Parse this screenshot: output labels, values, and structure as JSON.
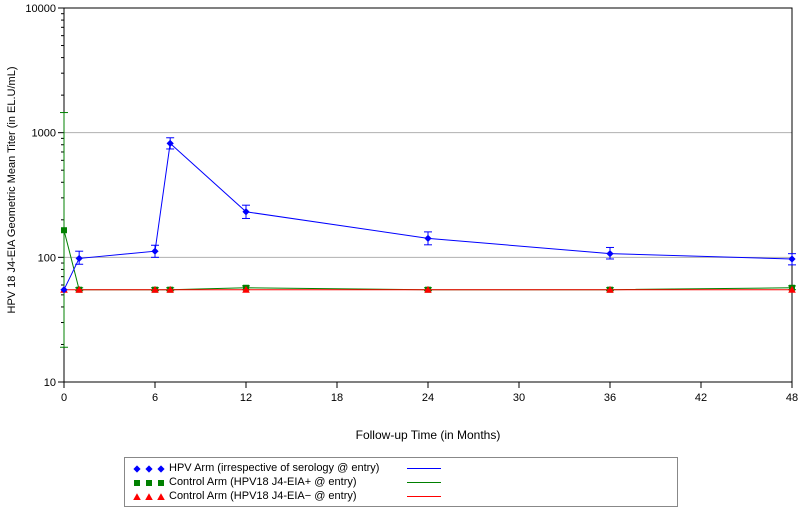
{
  "chart_data": {
    "type": "line",
    "title": "",
    "xlabel": "Follow-up Time (in Months)",
    "ylabel": "HPV 18 J4-EIA Geometric Mean Titer (in EL.U/mL)",
    "x_ticks": [
      0,
      6,
      12,
      18,
      24,
      30,
      36,
      42,
      48
    ],
    "y_ticks": [
      10,
      100,
      1000,
      10000
    ],
    "y_scale": "log",
    "xlim": [
      0,
      48
    ],
    "ylim": [
      10,
      10000
    ],
    "grid": "horizontal at 100 and 1000",
    "legend_position": "bottom",
    "series": [
      {
        "name": "HPV Arm (irrespective of serology @ entry)",
        "color": "#0000ff",
        "marker": "diamond",
        "points": [
          {
            "x": 0,
            "y": 55,
            "lo": 55,
            "hi": 55
          },
          {
            "x": 1,
            "y": 98,
            "lo": 88,
            "hi": 112
          },
          {
            "x": 6,
            "y": 112,
            "lo": 100,
            "hi": 125
          },
          {
            "x": 7,
            "y": 820,
            "lo": 740,
            "hi": 910
          },
          {
            "x": 12,
            "y": 232,
            "lo": 205,
            "hi": 262
          },
          {
            "x": 24,
            "y": 142,
            "lo": 126,
            "hi": 160
          },
          {
            "x": 36,
            "y": 107,
            "lo": 97,
            "hi": 120
          },
          {
            "x": 48,
            "y": 97,
            "lo": 87,
            "hi": 107
          }
        ]
      },
      {
        "name": "Control Arm (HPV18 J4-EIA+ @ entry)",
        "color": "#008000",
        "marker": "square",
        "points": [
          {
            "x": 0,
            "y": 165,
            "lo": 19,
            "hi": 1450
          },
          {
            "x": 1,
            "y": 55,
            "lo": 54,
            "hi": 57
          },
          {
            "x": 6,
            "y": 55,
            "lo": 54,
            "hi": 57
          },
          {
            "x": 7,
            "y": 55,
            "lo": 54,
            "hi": 57
          },
          {
            "x": 12,
            "y": 57,
            "lo": 55,
            "hi": 59
          },
          {
            "x": 24,
            "y": 55,
            "lo": 54,
            "hi": 57
          },
          {
            "x": 36,
            "y": 55,
            "lo": 54,
            "hi": 57
          },
          {
            "x": 48,
            "y": 57,
            "lo": 55,
            "hi": 59
          }
        ]
      },
      {
        "name": "Control Arm (HPV18 J4-EIA− @ entry)",
        "color": "#ff0000",
        "marker": "triangle",
        "points": [
          {
            "x": 0,
            "y": 55,
            "lo": 55,
            "hi": 55
          },
          {
            "x": 1,
            "y": 55,
            "lo": 55,
            "hi": 55
          },
          {
            "x": 6,
            "y": 55,
            "lo": 55,
            "hi": 55
          },
          {
            "x": 7,
            "y": 55,
            "lo": 55,
            "hi": 55
          },
          {
            "x": 12,
            "y": 55,
            "lo": 55,
            "hi": 55
          },
          {
            "x": 24,
            "y": 55,
            "lo": 55,
            "hi": 55
          },
          {
            "x": 36,
            "y": 55,
            "lo": 55,
            "hi": 55
          },
          {
            "x": 48,
            "y": 55,
            "lo": 55,
            "hi": 55
          }
        ]
      }
    ]
  }
}
